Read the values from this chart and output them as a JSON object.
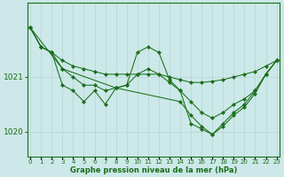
{
  "title": "Graphe pression niveau de la mer (hPa)",
  "bg_color": "#cce8e8",
  "grid_color": "#b8d8d8",
  "line_color": "#1a6e1a",
  "xlim": [
    -0.3,
    23.3
  ],
  "ylim": [
    1019.55,
    1022.35
  ],
  "yticks": [
    1020,
    1021
  ],
  "x_labels": [
    "0",
    "1",
    "2",
    "3",
    "4",
    "5",
    "6",
    "7",
    "8",
    "9",
    "10",
    "11",
    "12",
    "13",
    "14",
    "15",
    "16",
    "17",
    "18",
    "19",
    "20",
    "21",
    "22",
    "23"
  ],
  "series": [
    {
      "x": [
        0,
        1,
        2,
        3,
        4,
        5,
        6,
        7,
        8,
        9,
        10,
        11,
        12,
        13,
        14,
        15,
        16,
        17,
        18,
        19,
        20,
        21,
        22,
        23
      ],
      "y": [
        1021.9,
        1021.55,
        1021.45,
        1021.3,
        1021.2,
        1021.15,
        1021.1,
        1021.05,
        1021.05,
        1021.05,
        1021.05,
        1021.05,
        1021.05,
        1021.0,
        1020.95,
        1020.9,
        1020.9,
        1020.92,
        1020.95,
        1021.0,
        1021.05,
        1021.1,
        1021.2,
        1021.3
      ]
    },
    {
      "x": [
        0,
        1,
        2,
        3,
        4,
        5,
        6,
        7,
        8,
        9,
        10,
        11,
        12,
        13,
        14,
        15,
        16,
        17,
        18,
        19,
        20,
        21,
        22,
        23
      ],
      "y": [
        1021.9,
        1021.55,
        1021.45,
        1021.15,
        1021.0,
        1020.85,
        1020.85,
        1020.75,
        1020.8,
        1020.85,
        1021.05,
        1021.15,
        1021.05,
        1020.9,
        1020.75,
        1020.55,
        1020.35,
        1020.25,
        1020.35,
        1020.5,
        1020.6,
        1020.75,
        1021.05,
        1021.3
      ]
    },
    {
      "x": [
        0,
        1,
        2,
        3,
        4,
        5,
        6,
        7,
        8,
        9,
        10,
        11,
        12,
        13,
        14,
        15,
        16,
        17,
        18,
        19,
        20,
        21,
        22,
        23
      ],
      "y": [
        1021.9,
        1021.55,
        1021.45,
        1020.85,
        1020.75,
        1020.55,
        1020.75,
        1020.5,
        1020.8,
        1020.85,
        1021.45,
        1021.55,
        1021.45,
        1020.95,
        1020.75,
        1020.15,
        1020.05,
        1019.95,
        1020.1,
        1020.3,
        1020.45,
        1020.7,
        1021.05,
        1021.3
      ]
    },
    {
      "x": [
        0,
        3,
        8,
        14,
        15,
        16,
        17,
        18,
        19,
        20,
        21,
        22,
        23
      ],
      "y": [
        1021.9,
        1021.15,
        1020.8,
        1020.55,
        1020.3,
        1020.1,
        1019.95,
        1020.15,
        1020.35,
        1020.5,
        1020.75,
        1021.05,
        1021.3
      ]
    }
  ]
}
